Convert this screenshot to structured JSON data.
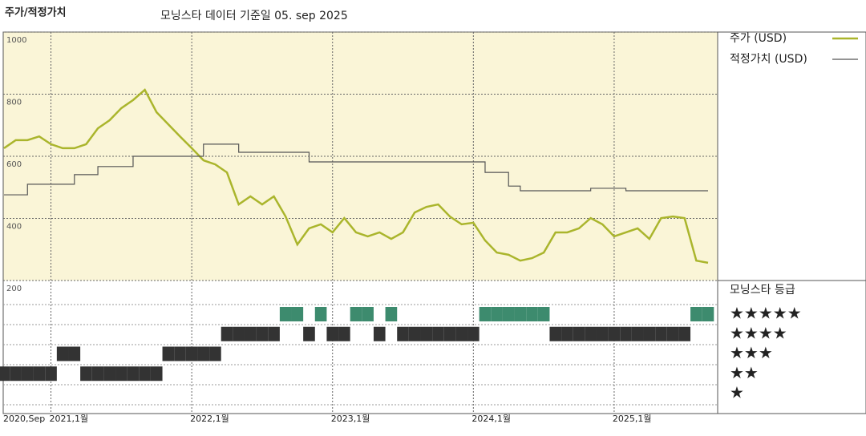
{
  "chart_data": {
    "type": "line",
    "title": "주가/적정가치",
    "subtitle": "모닝스타 데이터 기준일 05. sep 2025",
    "x": [
      "2020-09",
      "2020-10",
      "2020-11",
      "2020-12",
      "2021-01",
      "2021-02",
      "2021-03",
      "2021-04",
      "2021-05",
      "2021-06",
      "2021-07",
      "2021-08",
      "2021-09",
      "2021-10",
      "2021-11",
      "2021-12",
      "2022-01",
      "2022-02",
      "2022-03",
      "2022-04",
      "2022-05",
      "2022-06",
      "2022-07",
      "2022-08",
      "2022-09",
      "2022-10",
      "2022-11",
      "2022-12",
      "2023-01",
      "2023-02",
      "2023-03",
      "2023-04",
      "2023-05",
      "2023-06",
      "2023-07",
      "2023-08",
      "2023-09",
      "2023-10",
      "2023-11",
      "2023-12",
      "2024-01",
      "2024-02",
      "2024-03",
      "2024-04",
      "2024-05",
      "2024-06",
      "2024-07",
      "2024-08",
      "2024-09",
      "2024-10",
      "2024-11",
      "2024-12",
      "2025-01",
      "2025-02",
      "2025-03",
      "2025-04",
      "2025-05",
      "2025-06",
      "2025-07",
      "2025-08",
      "2025-09"
    ],
    "series": [
      {
        "name": "주가 (USD)",
        "color": "#aab52c",
        "width": 2.5,
        "values": [
          626,
          652,
          652,
          664,
          639,
          626,
          626,
          639,
          690,
          716,
          755,
          781,
          814,
          742,
          703,
          664,
          626,
          587,
          574,
          548,
          445,
          471,
          445,
          471,
          406,
          316,
          368,
          381,
          355,
          401,
          355,
          342,
          355,
          334,
          355,
          419,
          437,
          445,
          406,
          381,
          386,
          329,
          290,
          283,
          264,
          272,
          290,
          355,
          355,
          368,
          401,
          381,
          342,
          355,
          368,
          334,
          401,
          406,
          401,
          264,
          257
        ]
      },
      {
        "name": "적정가치 (USD)",
        "color": "#555555",
        "width": 1.2,
        "step": true,
        "values": [
          476,
          476,
          510,
          510,
          510,
          510,
          541,
          541,
          567,
          567,
          567,
          600,
          600,
          600,
          600,
          600,
          600,
          639,
          639,
          639,
          613,
          613,
          613,
          613,
          613,
          613,
          582,
          582,
          582,
          582,
          582,
          582,
          582,
          582,
          582,
          582,
          582,
          582,
          582,
          582,
          582,
          548,
          548,
          504,
          489,
          489,
          489,
          489,
          489,
          489,
          497,
          497,
          497,
          489,
          489,
          489,
          489,
          489,
          489,
          489,
          489
        ]
      }
    ],
    "xlim": [
      "2020-09",
      "2025-09"
    ],
    "xticks": [
      {
        "value": "2020-09",
        "label": "2020,Sep"
      },
      {
        "value": "2021-01",
        "label": "2021,1월"
      },
      {
        "value": "2022-01",
        "label": "2022,1월"
      },
      {
        "value": "2023-01",
        "label": "2023,1월"
      },
      {
        "value": "2024-01",
        "label": "2024,1월"
      },
      {
        "value": "2025-01",
        "label": "2025,1월"
      }
    ],
    "ylim": [
      200,
      1000
    ],
    "yticks": [
      200,
      400,
      600,
      800,
      1000
    ],
    "grid": true,
    "ratings": {
      "title": "모닝스타 등급",
      "labels": [
        "★★★★★",
        "★★★★",
        "★★★",
        "★★",
        "★"
      ],
      "colors": [
        "#333333",
        "#333333",
        "#333333",
        "#333333",
        "#3d8b6e"
      ],
      "values": [
        2,
        2,
        2,
        2,
        2,
        3,
        3,
        2,
        2,
        2,
        2,
        2,
        2,
        2,
        3,
        3,
        3,
        3,
        3,
        4,
        4,
        4,
        4,
        4,
        5,
        5,
        4,
        5,
        4,
        4,
        5,
        5,
        4,
        5,
        4,
        4,
        4,
        4,
        4,
        4,
        4,
        5,
        5,
        5,
        5,
        5,
        5,
        4,
        4,
        4,
        4,
        4,
        4,
        4,
        4,
        4,
        4,
        4,
        4,
        5,
        5
      ]
    }
  }
}
